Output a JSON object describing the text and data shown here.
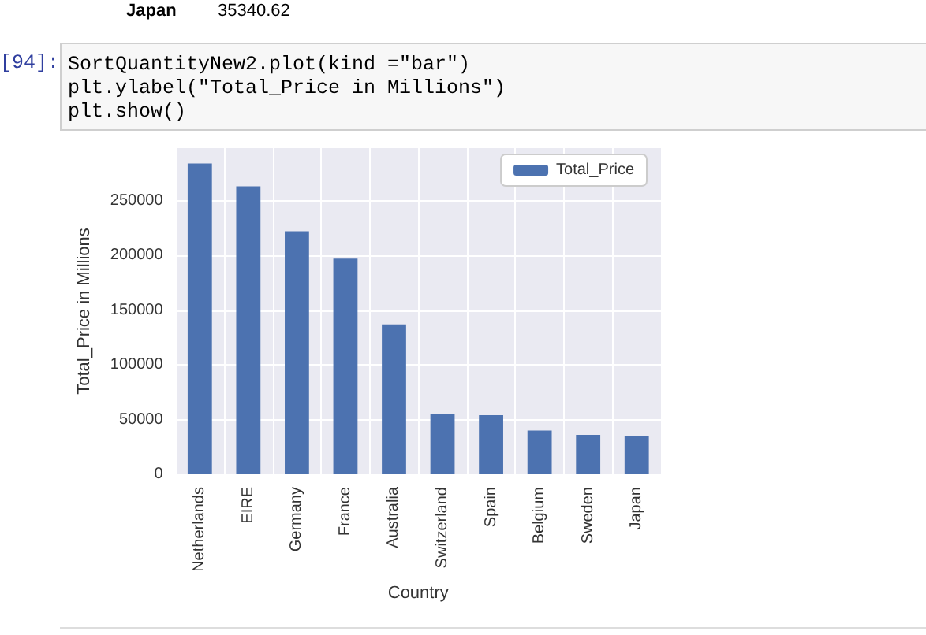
{
  "chart_data": {
    "type": "bar",
    "xlabel": "Country",
    "ylabel": "Total_Price in Millions",
    "categories": [
      "Netherlands",
      "EIRE",
      "Germany",
      "France",
      "Australia",
      "Switzerland",
      "Spain",
      "Belgium",
      "Sweden",
      "Japan"
    ],
    "series": [
      {
        "name": "Total_Price",
        "color": "#4c72b0",
        "values": [
          284000,
          263000,
          222000,
          197000,
          137000,
          55000,
          54000,
          40000,
          36000,
          35000
        ]
      }
    ],
    "ylim": [
      0,
      298000
    ],
    "yticks": [
      0,
      50000,
      100000,
      150000,
      200000,
      250000
    ],
    "grid": true,
    "legend": "top right",
    "annotations": [
      "Japan",
      "35340.62",
      "[94]:",
      "SortQuantityNew2.plot(kind =\"bar\")",
      "plt.ylabel(\"Total_Price in Millions\")",
      "plt.show()"
    ]
  }
}
